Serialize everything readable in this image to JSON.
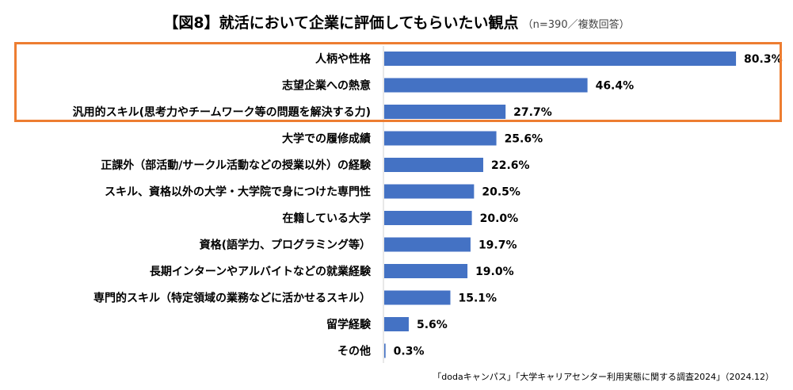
{
  "chart_data": {
    "type": "bar",
    "orientation": "horizontal",
    "title": "【図8】就活において企業に評価してもらいたい観点",
    "subtitle": "（n=390／複数回答）",
    "categories": [
      "人柄や性格",
      "志望企業への熱意",
      "汎用的スキル(思考力やチームワーク等の問題を解決する力)",
      "大学での履修成績",
      "正課外（部活動/サークル活動などの授業以外）の経験",
      "スキル、資格以外の大学・大学院で身につけた専門性",
      "在籍している大学",
      "資格(語学力、プログラミング等）",
      "長期インターンやアルバイトなどの就業経験",
      "専門的スキル（特定領域の業務などに活かせるスキル）",
      "留学経験",
      "その他"
    ],
    "values": [
      80.3,
      46.4,
      27.7,
      25.6,
      22.6,
      20.5,
      20.0,
      19.7,
      19.0,
      15.1,
      5.6,
      0.3
    ],
    "value_labels": [
      "80.3%",
      "46.4%",
      "27.7%",
      "25.6%",
      "22.6%",
      "20.5%",
      "20.0%",
      "19.7%",
      "19.0%",
      "15.1%",
      "5.6%",
      "0.3%"
    ],
    "xlim": [
      0,
      100
    ],
    "unit": "%",
    "bar_color": "#4472c4",
    "highlight_color": "#ed7d31",
    "highlighted_top_n": 3
  },
  "source_note": "「dodaキャンパス」「大学キャリアセンター利用実態に関する調査2024」（2024.12）"
}
